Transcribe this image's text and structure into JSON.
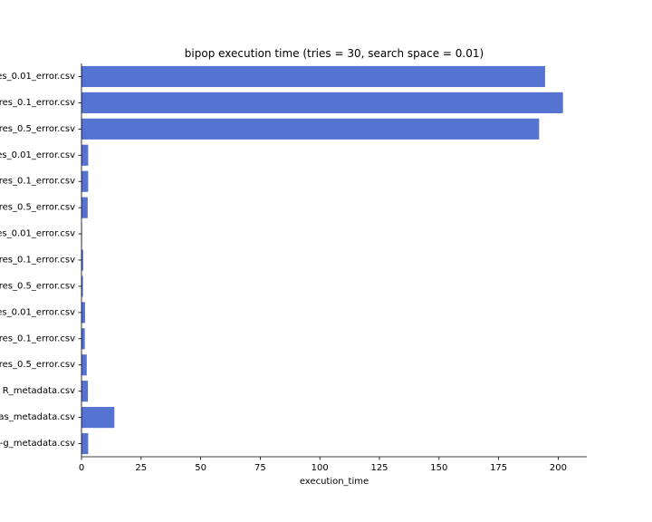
{
  "chart_data": {
    "type": "bar",
    "orientation": "horizontal",
    "title": "bipop execution time (tries = 30, search space = 0.01)",
    "xlabel": "execution_time",
    "ylabel": "",
    "xlim": [
      0,
      212
    ],
    "xticks": [
      0,
      25,
      50,
      75,
      100,
      125,
      150,
      175,
      200
    ],
    "categories": [
      "es_0.01_error.csv",
      "res_0.1_error.csv",
      "res_0.5_error.csv",
      "es_0.01_error.csv",
      "res_0.1_error.csv",
      "res_0.5_error.csv",
      "es_0.01_error.csv",
      "res_0.1_error.csv",
      "res_0.5_error.csv",
      "es_0.01_error.csv",
      "res_0.1_error.csv",
      "res_0.5_error.csv",
      "R_metadata.csv",
      "as_metadata.csv",
      "-g_metadata.csv"
    ],
    "values": [
      194.5,
      202,
      192,
      2.8,
      2.8,
      2.6,
      0.2,
      0.7,
      0.6,
      1.5,
      1.4,
      2.2,
      2.7,
      13.8,
      2.8
    ],
    "bar_color": "#5573d0",
    "grid": false,
    "legend": "none"
  }
}
